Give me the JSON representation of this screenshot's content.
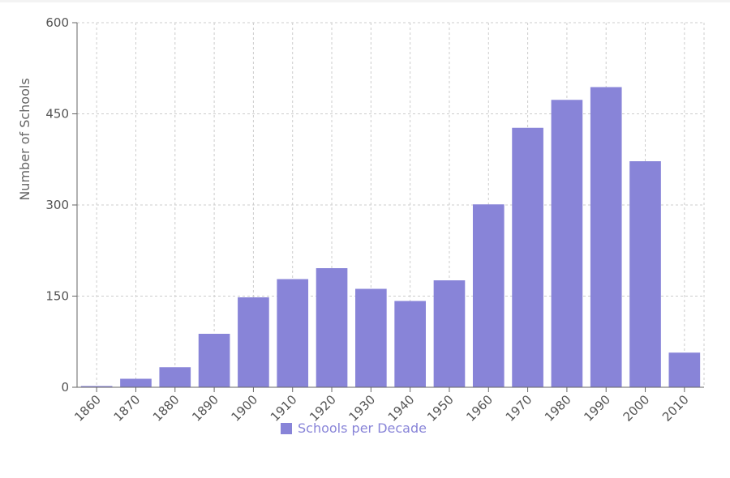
{
  "chart_data": {
    "type": "bar",
    "ylabel": "Number of Schools",
    "xlabel": "",
    "ylim": [
      0,
      600
    ],
    "yticks": [
      0,
      150,
      300,
      450,
      600
    ],
    "categories": [
      "1860",
      "1870",
      "1880",
      "1890",
      "1900",
      "1910",
      "1920",
      "1930",
      "1940",
      "1950",
      "1960",
      "1970",
      "1980",
      "1990",
      "2000",
      "2010"
    ],
    "series": [
      {
        "name": "Schools per Decade",
        "color": "#8884d8",
        "values": [
          2,
          14,
          33,
          88,
          148,
          178,
          196,
          162,
          142,
          176,
          301,
          427,
          473,
          494,
          372,
          57
        ]
      }
    ],
    "grid": true,
    "legend_position": "bottom"
  }
}
